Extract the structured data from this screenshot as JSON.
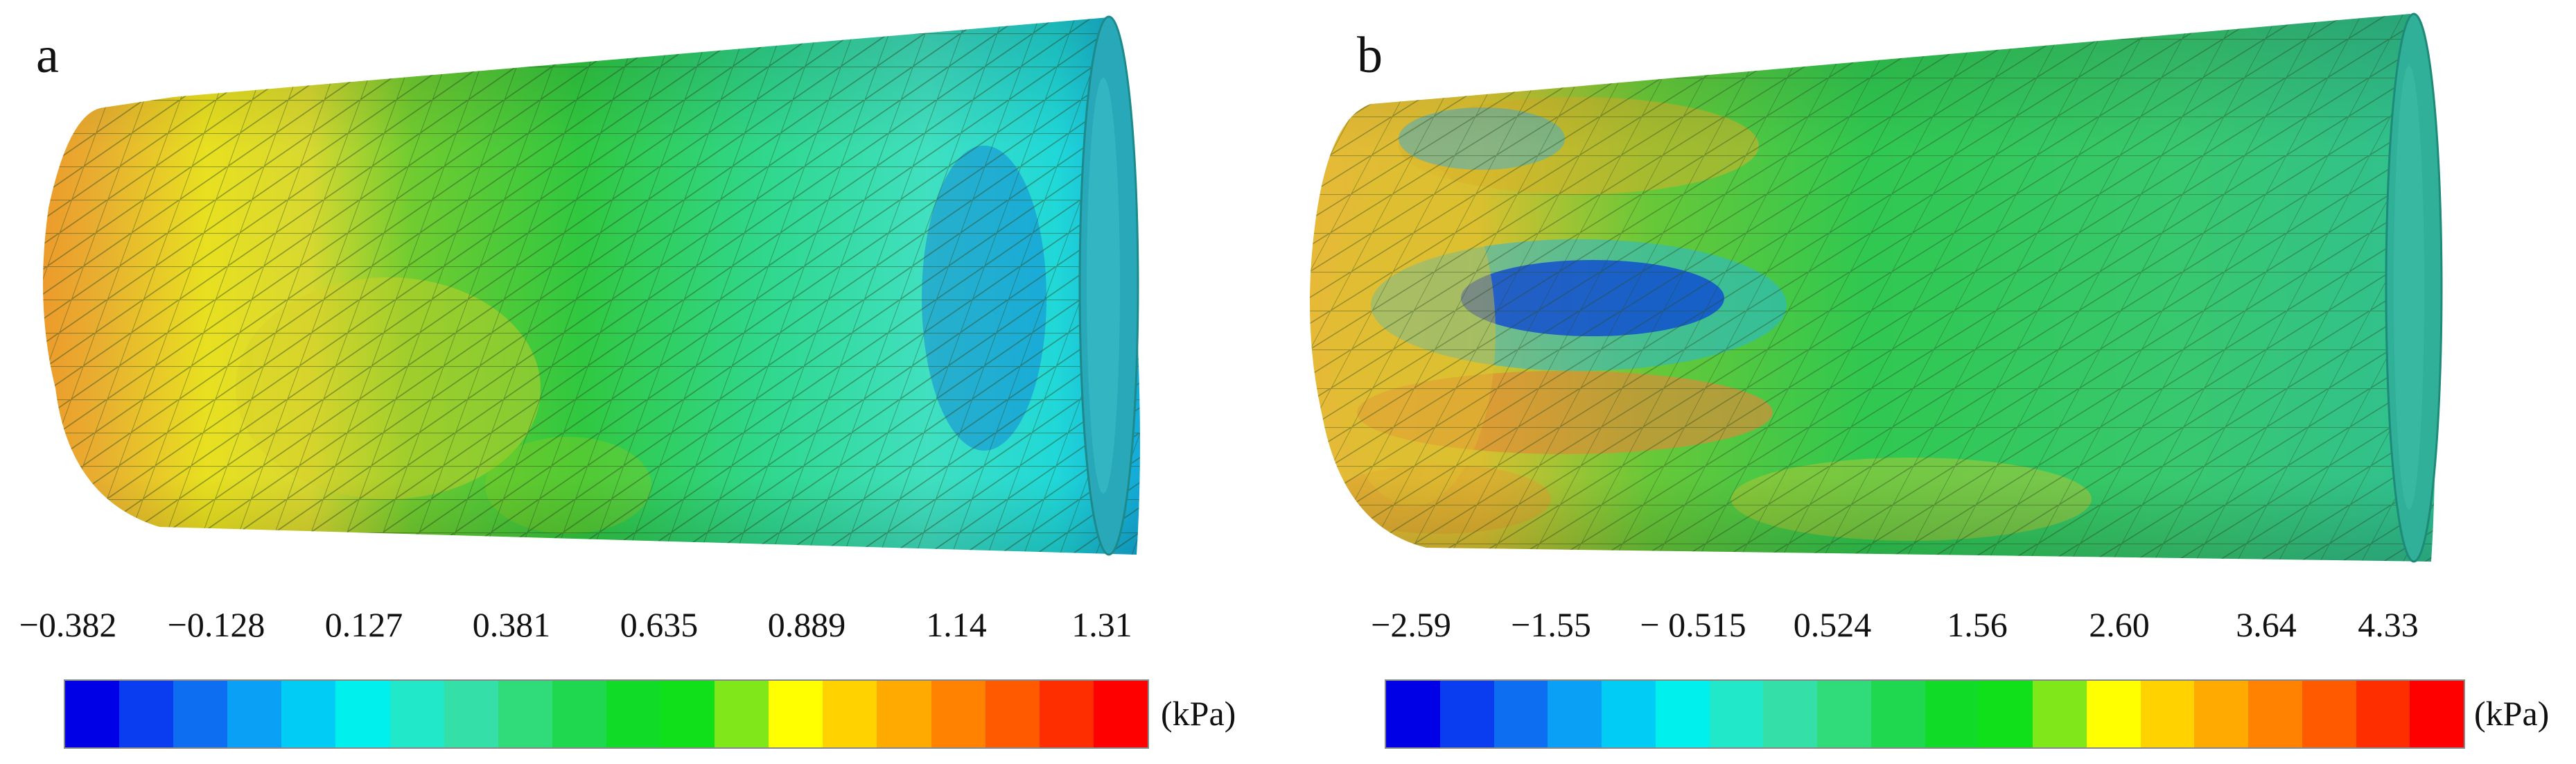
{
  "panels": [
    {
      "letter": "a",
      "ticks": [
        "−0.382",
        "−0.128",
        "0.127",
        "0.381",
        "0.635",
        "0.889",
        "1.14",
        "1.31"
      ],
      "unit": "(kPa)"
    },
    {
      "letter": "b",
      "ticks": [
        "−2.59",
        "−1.55",
        "− 0.515",
        "0.524",
        "1.56",
        "2.60",
        "3.64",
        "4.33"
      ],
      "unit": "(kPa)"
    }
  ],
  "colormap": [
    "#0000e6",
    "#0a3cf0",
    "#0d6ef2",
    "#0aa0f5",
    "#00ccf5",
    "#00f0ee",
    "#20e8c8",
    "#34e0a8",
    "#30dc7a",
    "#20d850",
    "#10dc28",
    "#10e01a",
    "#80e81a",
    "#ffff00",
    "#ffd200",
    "#ffaa00",
    "#ff8200",
    "#ff5a00",
    "#ff2e00",
    "#ff0000"
  ]
}
